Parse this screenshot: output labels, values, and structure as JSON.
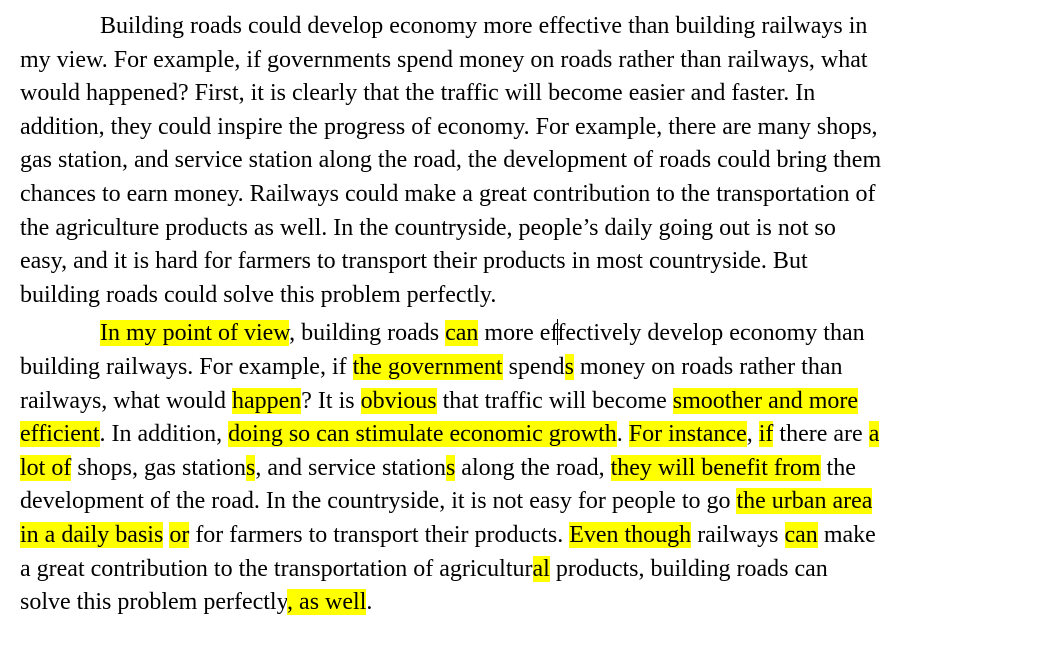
{
  "document": {
    "highlight_color": "#ffff00",
    "paragraph1": {
      "lines": [
        "Building roads could develop economy more effective than building railways in",
        "my view. For example, if governments spend money on roads rather than railways, what",
        "would happened? First, it is clearly that the traffic will become easier and faster. In",
        "addition, they could inspire the progress of economy. For example, there are many shops,",
        "gas station, and service station along the road, the development of roads could bring them",
        "chances to earn money. Railways could make a great contribution to the transportation of",
        "the agriculture products as well. In the countryside, people’s daily going out is not so",
        "easy, and it is hard for farmers to transport their products in most countryside. But",
        "building roads could solve this problem perfectly."
      ]
    },
    "paragraph2": {
      "l1": [
        "In my point of view",
        ", building roads ",
        "can",
        " more ef",
        "fectively develop economy than"
      ],
      "l2": [
        "building railways. For example, if ",
        "the government",
        " spend",
        "s",
        " money on roads rather than"
      ],
      "l3": [
        "railways, what would ",
        "happen",
        "? It is ",
        "obvious",
        " that traffic will become ",
        "smoother and more"
      ],
      "l4": [
        "efficient",
        ". In addition, ",
        "doing so can stimulate economic growth",
        ". ",
        "For instance",
        ", ",
        "if",
        " there are ",
        "a"
      ],
      "l5": [
        "lot of",
        " shops, gas station",
        "s",
        ", and service station",
        "s",
        " along the road, ",
        "they will benefit from",
        " the"
      ],
      "l6": [
        "development of the road. In the countryside, it is not easy for people to go ",
        "the urban area"
      ],
      "l7": [
        "in a daily basis",
        " ",
        "or",
        " for farmers to transport their products. ",
        "Even though",
        " railways ",
        "can",
        " make"
      ],
      "l8": [
        "a great contribution to the transportation of agricultur",
        "al",
        " products, building roads can"
      ],
      "l9": [
        "solve this problem perfectly",
        ", as well",
        "."
      ]
    }
  }
}
